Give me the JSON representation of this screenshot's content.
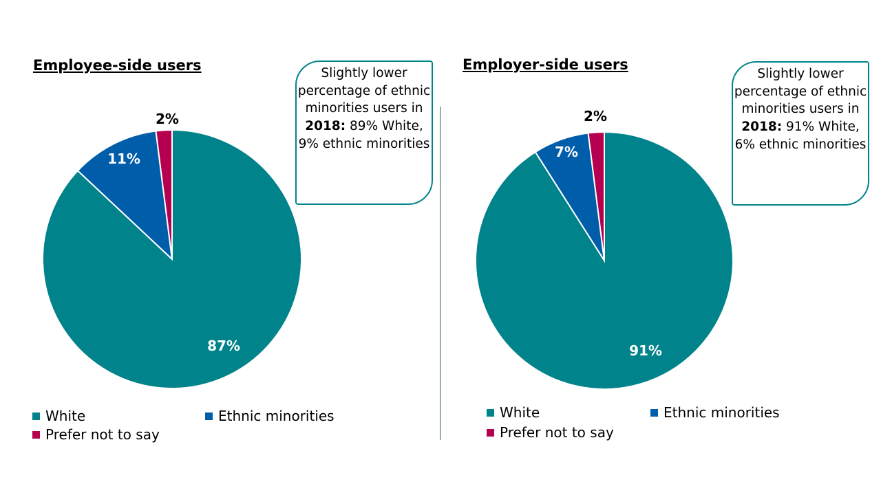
{
  "colors": {
    "White": "#00838A",
    "Ethnic minorities": "#005DAA",
    "Prefer not to say": "#B5004F"
  },
  "chart_data": [
    {
      "type": "pie",
      "title": "Employee-side users",
      "categories": [
        "White",
        "Ethnic minorities",
        "Prefer not to say"
      ],
      "values": [
        87,
        11,
        2
      ],
      "data_labels": [
        "87%",
        "11%",
        "2%"
      ],
      "legend_placement": "bottom",
      "callout": {
        "pre": "Slightly lower percentage of ethnic minorities users in ",
        "year": "2018:",
        "post": " 89% White, 9% ethnic minorities"
      }
    },
    {
      "type": "pie",
      "title": "Employer-side users",
      "categories": [
        "White",
        "Ethnic minorities",
        "Prefer not to say"
      ],
      "values": [
        91,
        7,
        2
      ],
      "data_labels": [
        "91%",
        "7%",
        "2%"
      ],
      "legend_placement": "bottom",
      "callout": {
        "pre": "Slightly lower percentage of ethnic minorities users in ",
        "year": "2018:",
        "post": " 91% White, 6% ethnic minorities"
      }
    }
  ]
}
